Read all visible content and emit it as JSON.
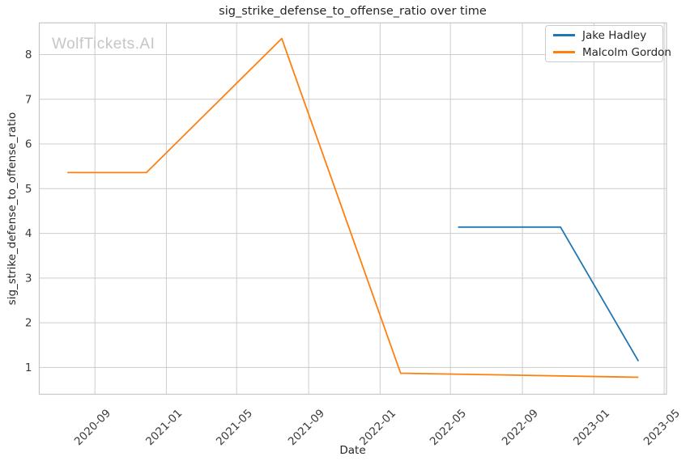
{
  "title": "sig_strike_defense_to_offense_ratio over time",
  "watermark": "WolfTickets.AI",
  "colors": {
    "background": "#ffffff",
    "grid": "#cccccc",
    "spine": "#c6c6c6",
    "tick_text": "#3a3a3a",
    "text": "#262626",
    "watermark": "#c6c6c6",
    "series_blue": "#1f77b4",
    "series_orange": "#ff7f0e"
  },
  "legend": {
    "position": "upper right",
    "items": [
      "Jake Hadley",
      "Malcolm Gordon"
    ]
  },
  "chart_data": {
    "type": "line",
    "title": "sig_strike_defense_to_offense_ratio over time",
    "xlabel": "Date",
    "ylabel": "sig_strike_defense_to_offense_ratio",
    "grid": true,
    "legend_position": "upper right",
    "x_ticks": [
      "2020-09",
      "2021-01",
      "2021-05",
      "2021-09",
      "2022-01",
      "2022-05",
      "2022-09",
      "2023-01",
      "2023-05"
    ],
    "y_ticks": [
      1,
      2,
      3,
      4,
      5,
      6,
      7,
      8
    ],
    "xlim": [
      "2020-05-29",
      "2023-05-05"
    ],
    "ylim": [
      0.4,
      8.71
    ],
    "series": [
      {
        "name": "Jake Hadley",
        "color": "#1f77b4",
        "points": [
          [
            "2022-05-14",
            4.14
          ],
          [
            "2022-11-05",
            4.14
          ],
          [
            "2023-03-18",
            1.14
          ]
        ]
      },
      {
        "name": "Malcolm Gordon",
        "color": "#ff7f0e",
        "points": [
          [
            "2020-07-16",
            5.36
          ],
          [
            "2020-11-28",
            5.36
          ],
          [
            "2021-07-17",
            8.36
          ],
          [
            "2022-02-05",
            0.87
          ],
          [
            "2023-03-18",
            0.78
          ]
        ]
      }
    ]
  }
}
